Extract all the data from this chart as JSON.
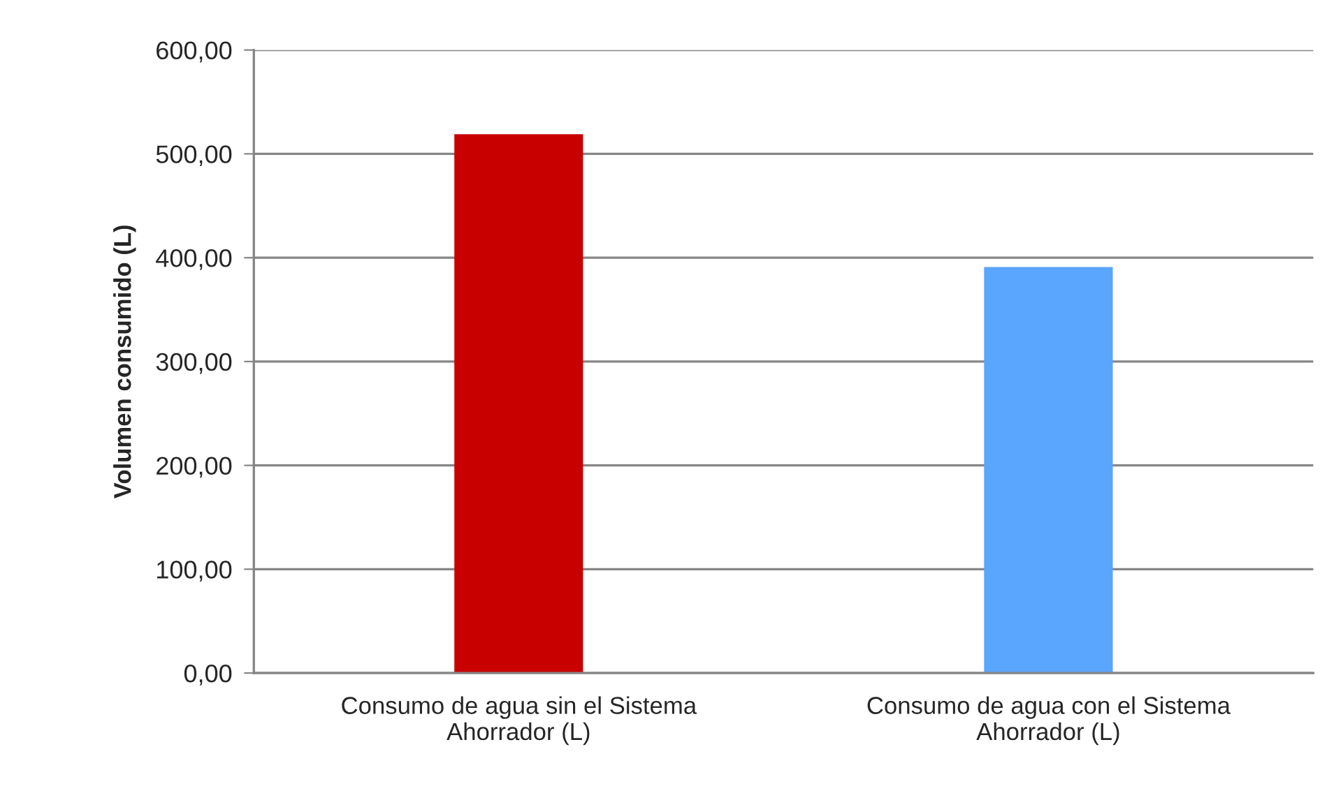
{
  "chart_data": {
    "type": "bar",
    "ylabel": "Volumen consumido (L)",
    "categories": [
      "Consumo de agua sin el Sistema\nAhorrador (L)",
      "Consumo de agua con el Sistema\nAhorrador (L)"
    ],
    "values": [
      519,
      391
    ],
    "colors": [
      "#c80000",
      "#5aa5fd"
    ],
    "ylim": [
      0,
      600
    ],
    "yticks": [
      {
        "value": 0,
        "label": "0,00"
      },
      {
        "value": 100,
        "label": "100,00"
      },
      {
        "value": 200,
        "label": "200,00"
      },
      {
        "value": 300,
        "label": "300,00"
      },
      {
        "value": 400,
        "label": "400,00"
      },
      {
        "value": 500,
        "label": "500,00"
      },
      {
        "value": 600,
        "label": "600,00"
      }
    ],
    "grid": "y",
    "legend": false
  }
}
